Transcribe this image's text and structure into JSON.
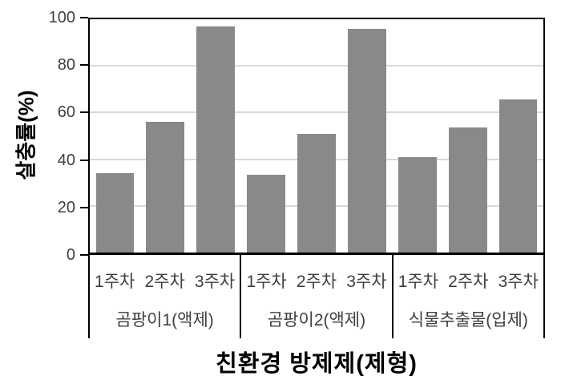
{
  "chart_data": {
    "type": "bar",
    "title": "",
    "xlabel": "친환경 방제제(제형)",
    "ylabel": "살충률(%)",
    "ylim": [
      0,
      100
    ],
    "yticks": [
      0,
      20,
      40,
      60,
      80,
      100
    ],
    "grid": "horizontal",
    "legend": "none",
    "categories_per_group": [
      "1주차",
      "2주차",
      "3주차"
    ],
    "groups": [
      {
        "label": "곰팡이1(액제)",
        "values": [
          34,
          56,
          97
        ]
      },
      {
        "label": "곰팡이2(액제)",
        "values": [
          33.5,
          51,
          96
        ]
      },
      {
        "label": "식물추출물(입제)",
        "values": [
          41,
          53.5,
          65.5
        ]
      }
    ],
    "colors": {
      "bar": "#898989",
      "gridline": "#d9d9d9",
      "axis": "#000000",
      "tick_label": "#3f3f3f"
    }
  }
}
